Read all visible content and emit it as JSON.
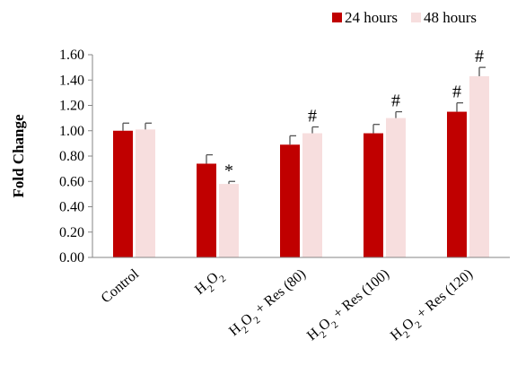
{
  "chart_data": {
    "type": "bar",
    "ylabel": "Fold Change",
    "ylim": [
      0,
      1.6
    ],
    "yticks": [
      "0.00",
      "0.20",
      "0.40",
      "0.60",
      "0.80",
      "1.00",
      "1.20",
      "1.40",
      "1.60"
    ],
    "categories": [
      {
        "base": "Control",
        "parts": [
          {
            "t": "Control"
          }
        ]
      },
      {
        "base": "H2O2",
        "parts": [
          {
            "t": "H"
          },
          {
            "t": "2",
            "sub": true
          },
          {
            "t": "O"
          },
          {
            "t": "2",
            "sub": true
          }
        ]
      },
      {
        "base": "H2O2 + Res (80)",
        "parts": [
          {
            "t": "H"
          },
          {
            "t": "2",
            "sub": true
          },
          {
            "t": "O"
          },
          {
            "t": "2",
            "sub": true
          },
          {
            "t": " + Res (80)"
          }
        ]
      },
      {
        "base": "H2O2 + Res (100)",
        "parts": [
          {
            "t": "H"
          },
          {
            "t": "2",
            "sub": true
          },
          {
            "t": "O"
          },
          {
            "t": "2",
            "sub": true
          },
          {
            "t": " + Res (100)"
          }
        ]
      },
      {
        "base": "H2O2 + Res (120)",
        "parts": [
          {
            "t": "H"
          },
          {
            "t": "2",
            "sub": true
          },
          {
            "t": "O"
          },
          {
            "t": "2",
            "sub": true
          },
          {
            "t": " + Res (120)"
          }
        ]
      }
    ],
    "series": [
      {
        "name": "24 hours",
        "color": "#c00000",
        "values": [
          1.0,
          0.74,
          0.89,
          0.98,
          1.15
        ],
        "errors": [
          0.06,
          0.07,
          0.07,
          0.07,
          0.07
        ],
        "annotations": [
          "",
          "",
          "",
          "",
          "#"
        ]
      },
      {
        "name": "48 hours",
        "color": "#f7dede",
        "values": [
          1.01,
          0.58,
          0.98,
          1.1,
          1.43
        ],
        "errors": [
          0.05,
          0.02,
          0.05,
          0.05,
          0.07
        ],
        "annotations": [
          "",
          "*",
          "#",
          "#",
          "#"
        ]
      }
    ],
    "legend": "top-right",
    "grid": false
  }
}
